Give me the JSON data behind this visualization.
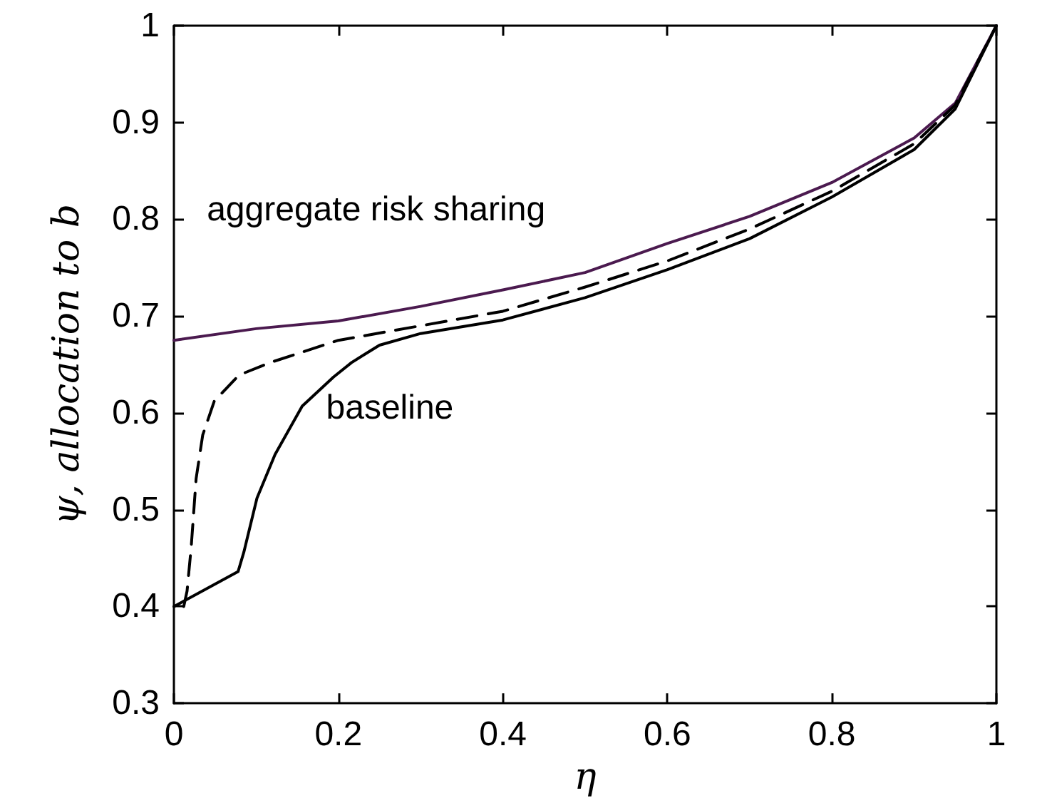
{
  "chart_data": {
    "type": "line",
    "xlabel": "η",
    "ylabel": "ψ, allocation to b",
    "xlim": [
      0,
      1
    ],
    "xticks": [
      0,
      0.2,
      0.4,
      0.6,
      0.8,
      1
    ],
    "ylim": [
      0.3,
      1
    ],
    "yticks": [
      0.3,
      0.4,
      0.5,
      0.6,
      0.7,
      0.8,
      0.9,
      1
    ],
    "grid": false,
    "legend": false,
    "marker": "none",
    "series": [
      {
        "name": "aggregate risk sharing",
        "color": "#4b1a4f",
        "line_style": "solid",
        "x": [
          0,
          0.1,
          0.2,
          0.3,
          0.4,
          0.5,
          0.6,
          0.7,
          0.8,
          0.9,
          0.95,
          1
        ],
        "values": [
          0.675,
          0.687,
          0.695,
          0.71,
          0.727,
          0.745,
          0.775,
          0.803,
          0.838,
          0.884,
          0.92,
          1
        ]
      },
      {
        "color": "#000000",
        "line_style": "dashed",
        "x": [
          0.012,
          0.016,
          0.021,
          0.027,
          0.035,
          0.049,
          0.079,
          0.117,
          0.2,
          0.3,
          0.4,
          0.5,
          0.6,
          0.7,
          0.8,
          0.9,
          0.95,
          1
        ],
        "values": [
          0.4,
          0.416,
          0.461,
          0.532,
          0.577,
          0.612,
          0.639,
          0.652,
          0.675,
          0.69,
          0.705,
          0.73,
          0.757,
          0.79,
          0.829,
          0.878,
          0.918,
          1
        ]
      },
      {
        "name": "baseline",
        "color": "#000000",
        "line_style": "solid",
        "x": [
          0,
          0.078,
          0.085,
          0.101,
          0.123,
          0.156,
          0.194,
          0.216,
          0.25,
          0.3,
          0.4,
          0.5,
          0.6,
          0.7,
          0.8,
          0.9,
          0.95,
          1
        ],
        "values": [
          0.4,
          0.436,
          0.456,
          0.512,
          0.557,
          0.607,
          0.637,
          0.652,
          0.67,
          0.682,
          0.696,
          0.719,
          0.748,
          0.78,
          0.823,
          0.872,
          0.914,
          1
        ]
      }
    ]
  }
}
